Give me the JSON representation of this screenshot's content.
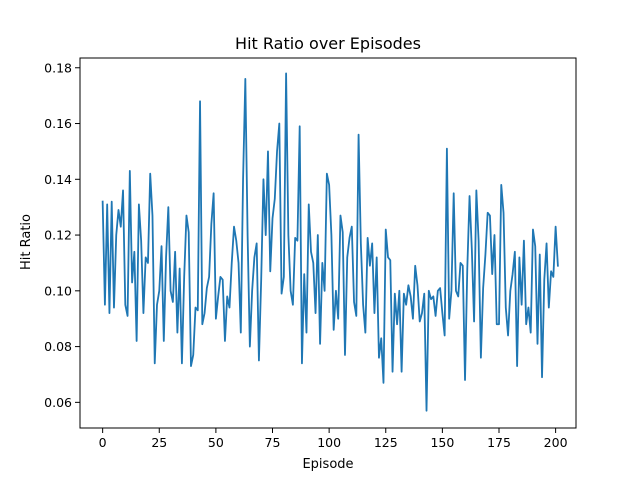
{
  "chart_data": {
    "type": "line",
    "title": "Hit Ratio over Episodes",
    "xlabel": "Episode",
    "ylabel": "Hit Ratio",
    "xlim": [
      -10,
      209
    ],
    "ylim": [
      0.0508,
      0.1835
    ],
    "xticks": [
      0,
      25,
      50,
      75,
      100,
      125,
      150,
      175,
      200
    ],
    "yticks": [
      0.06,
      0.08,
      0.1,
      0.12,
      0.14,
      0.16,
      0.18
    ],
    "ytick_labels": [
      "0.06",
      "0.08",
      "0.10",
      "0.12",
      "0.14",
      "0.16",
      "0.18"
    ],
    "grid": false,
    "legend": "none",
    "series": [
      {
        "color": "#1f77b4",
        "x_start": 0,
        "x_step": 1,
        "values": [
          0.132,
          0.095,
          0.131,
          0.092,
          0.132,
          0.094,
          0.12,
          0.129,
          0.123,
          0.136,
          0.095,
          0.091,
          0.143,
          0.103,
          0.114,
          0.082,
          0.131,
          0.118,
          0.092,
          0.112,
          0.11,
          0.142,
          0.127,
          0.074,
          0.095,
          0.1,
          0.116,
          0.082,
          0.112,
          0.13,
          0.1,
          0.096,
          0.114,
          0.085,
          0.108,
          0.074,
          0.105,
          0.127,
          0.121,
          0.073,
          0.077,
          0.094,
          0.093,
          0.168,
          0.088,
          0.092,
          0.101,
          0.105,
          0.124,
          0.135,
          0.09,
          0.098,
          0.105,
          0.104,
          0.082,
          0.098,
          0.094,
          0.11,
          0.123,
          0.118,
          0.11,
          0.085,
          0.14,
          0.176,
          0.12,
          0.08,
          0.1,
          0.112,
          0.117,
          0.075,
          0.104,
          0.14,
          0.12,
          0.15,
          0.107,
          0.126,
          0.133,
          0.15,
          0.16,
          0.099,
          0.105,
          0.178,
          0.12,
          0.1,
          0.095,
          0.119,
          0.118,
          0.159,
          0.074,
          0.106,
          0.085,
          0.131,
          0.114,
          0.11,
          0.092,
          0.12,
          0.081,
          0.11,
          0.1,
          0.142,
          0.138,
          0.12,
          0.086,
          0.1,
          0.09,
          0.127,
          0.121,
          0.077,
          0.112,
          0.119,
          0.123,
          0.096,
          0.091,
          0.156,
          0.117,
          0.095,
          0.085,
          0.119,
          0.109,
          0.117,
          0.092,
          0.112,
          0.076,
          0.083,
          0.067,
          0.122,
          0.112,
          0.111,
          0.071,
          0.099,
          0.088,
          0.1,
          0.071,
          0.099,
          0.095,
          0.102,
          0.098,
          0.09,
          0.109,
          0.102,
          0.089,
          0.092,
          0.099,
          0.057,
          0.1,
          0.097,
          0.098,
          0.091,
          0.1,
          0.101,
          0.092,
          0.084,
          0.151,
          0.09,
          0.1,
          0.135,
          0.1,
          0.098,
          0.11,
          0.109,
          0.068,
          0.108,
          0.134,
          0.115,
          0.089,
          0.136,
          0.118,
          0.076,
          0.101,
          0.113,
          0.128,
          0.127,
          0.106,
          0.12,
          0.088,
          0.088,
          0.138,
          0.128,
          0.094,
          0.084,
          0.1,
          0.106,
          0.114,
          0.073,
          0.112,
          0.095,
          0.118,
          0.088,
          0.094,
          0.085,
          0.122,
          0.116,
          0.081,
          0.113,
          0.069,
          0.104,
          0.117,
          0.094,
          0.107,
          0.105,
          0.123,
          0.109
        ]
      }
    ]
  }
}
